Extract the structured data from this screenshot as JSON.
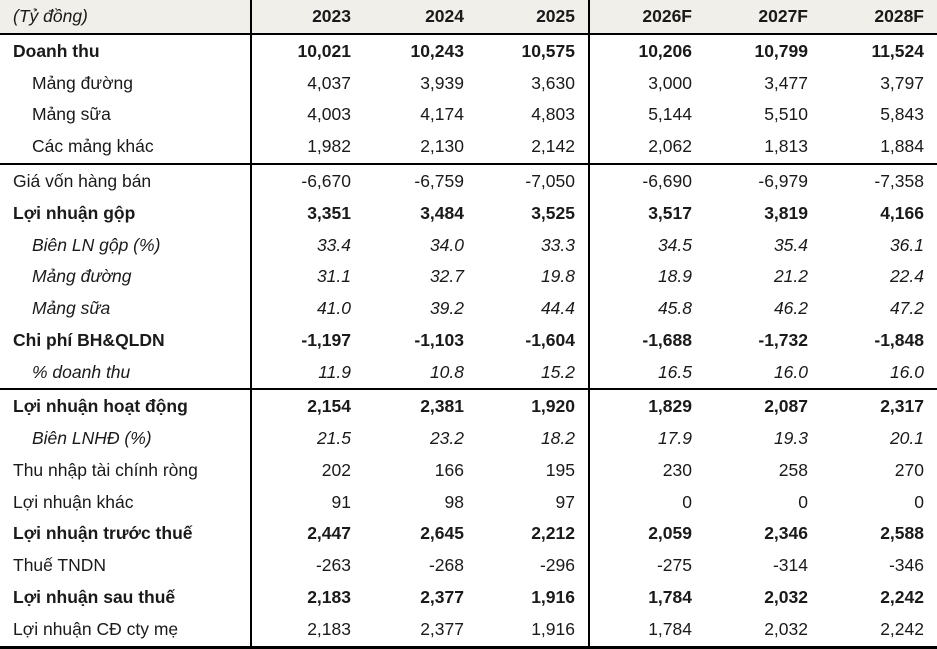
{
  "table": {
    "unit_label": "(Tỷ đồng)",
    "columns": [
      "2023",
      "2024",
      "2025",
      "2026F",
      "2027F",
      "2028F"
    ],
    "rows": [
      {
        "label": "Doanh thu",
        "style": "bold",
        "indent": false,
        "divider_after": false,
        "values": [
          "10,021",
          "10,243",
          "10,575",
          "10,206",
          "10,799",
          "11,524"
        ]
      },
      {
        "label": "Mảng đường",
        "style": "normal",
        "indent": true,
        "divider_after": false,
        "values": [
          "4,037",
          "3,939",
          "3,630",
          "3,000",
          "3,477",
          "3,797"
        ]
      },
      {
        "label": "Mảng sữa",
        "style": "normal",
        "indent": true,
        "divider_after": false,
        "values": [
          "4,003",
          "4,174",
          "4,803",
          "5,144",
          "5,510",
          "5,843"
        ]
      },
      {
        "label": "Các mảng khác",
        "style": "normal",
        "indent": true,
        "divider_after": true,
        "values": [
          "1,982",
          "2,130",
          "2,142",
          "2,062",
          "1,813",
          "1,884"
        ]
      },
      {
        "label": "Giá vốn hàng bán",
        "style": "normal",
        "indent": false,
        "divider_after": false,
        "values": [
          "-6,670",
          "-6,759",
          "-7,050",
          "-6,690",
          "-6,979",
          "-7,358"
        ]
      },
      {
        "label": "Lợi nhuận gộp",
        "style": "bold",
        "indent": false,
        "divider_after": false,
        "values": [
          "3,351",
          "3,484",
          "3,525",
          "3,517",
          "3,819",
          "4,166"
        ]
      },
      {
        "label": "Biên LN gộp (%)",
        "style": "italic",
        "indent": true,
        "divider_after": false,
        "values": [
          "33.4",
          "34.0",
          "33.3",
          "34.5",
          "35.4",
          "36.1"
        ]
      },
      {
        "label": "Mảng đường",
        "style": "italic",
        "indent": true,
        "divider_after": false,
        "values": [
          "31.1",
          "32.7",
          "19.8",
          "18.9",
          "21.2",
          "22.4"
        ]
      },
      {
        "label": "Mảng sữa",
        "style": "italic",
        "indent": true,
        "divider_after": false,
        "values": [
          "41.0",
          "39.2",
          "44.4",
          "45.8",
          "46.2",
          "47.2"
        ]
      },
      {
        "label": "Chi phí BH&QLDN",
        "style": "bold",
        "indent": false,
        "divider_after": false,
        "values": [
          "-1,197",
          "-1,103",
          "-1,604",
          "-1,688",
          "-1,732",
          "-1,848"
        ]
      },
      {
        "label": "% doanh thu",
        "style": "italic",
        "indent": true,
        "divider_after": true,
        "values": [
          "11.9",
          "10.8",
          "15.2",
          "16.5",
          "16.0",
          "16.0"
        ]
      },
      {
        "label": "Lợi nhuận hoạt động",
        "style": "bold",
        "indent": false,
        "divider_after": false,
        "values": [
          "2,154",
          "2,381",
          "1,920",
          "1,829",
          "2,087",
          "2,317"
        ]
      },
      {
        "label": "Biên LNHĐ (%)",
        "style": "italic",
        "indent": true,
        "divider_after": false,
        "values": [
          "21.5",
          "23.2",
          "18.2",
          "17.9",
          "19.3",
          "20.1"
        ]
      },
      {
        "label": "Thu nhập tài chính ròng",
        "style": "normal",
        "indent": false,
        "divider_after": false,
        "values": [
          "202",
          "166",
          "195",
          "230",
          "258",
          "270"
        ]
      },
      {
        "label": "Lợi nhuận khác",
        "style": "normal",
        "indent": false,
        "divider_after": false,
        "values": [
          "91",
          "98",
          "97",
          "0",
          "0",
          "0"
        ]
      },
      {
        "label": "Lợi nhuận trước thuế",
        "style": "bold",
        "indent": false,
        "divider_after": false,
        "values": [
          "2,447",
          "2,645",
          "2,212",
          "2,059",
          "2,346",
          "2,588"
        ]
      },
      {
        "label": "Thuế TNDN",
        "style": "normal",
        "indent": false,
        "divider_after": false,
        "values": [
          "-263",
          "-268",
          "-296",
          "-275",
          "-314",
          "-346"
        ]
      },
      {
        "label": "Lợi nhuận sau thuế",
        "style": "bold",
        "indent": false,
        "divider_after": false,
        "values": [
          "2,183",
          "2,377",
          "1,916",
          "1,784",
          "2,032",
          "2,242"
        ]
      },
      {
        "label": "Lợi nhuận CĐ cty mẹ",
        "style": "normal",
        "indent": false,
        "divider_after": false,
        "values": [
          "2,183",
          "2,377",
          "1,916",
          "1,784",
          "2,032",
          "2,242"
        ]
      }
    ]
  },
  "colors": {
    "header_background": "#f0efe9",
    "border": "#000000",
    "text": "#1a1a1a"
  }
}
